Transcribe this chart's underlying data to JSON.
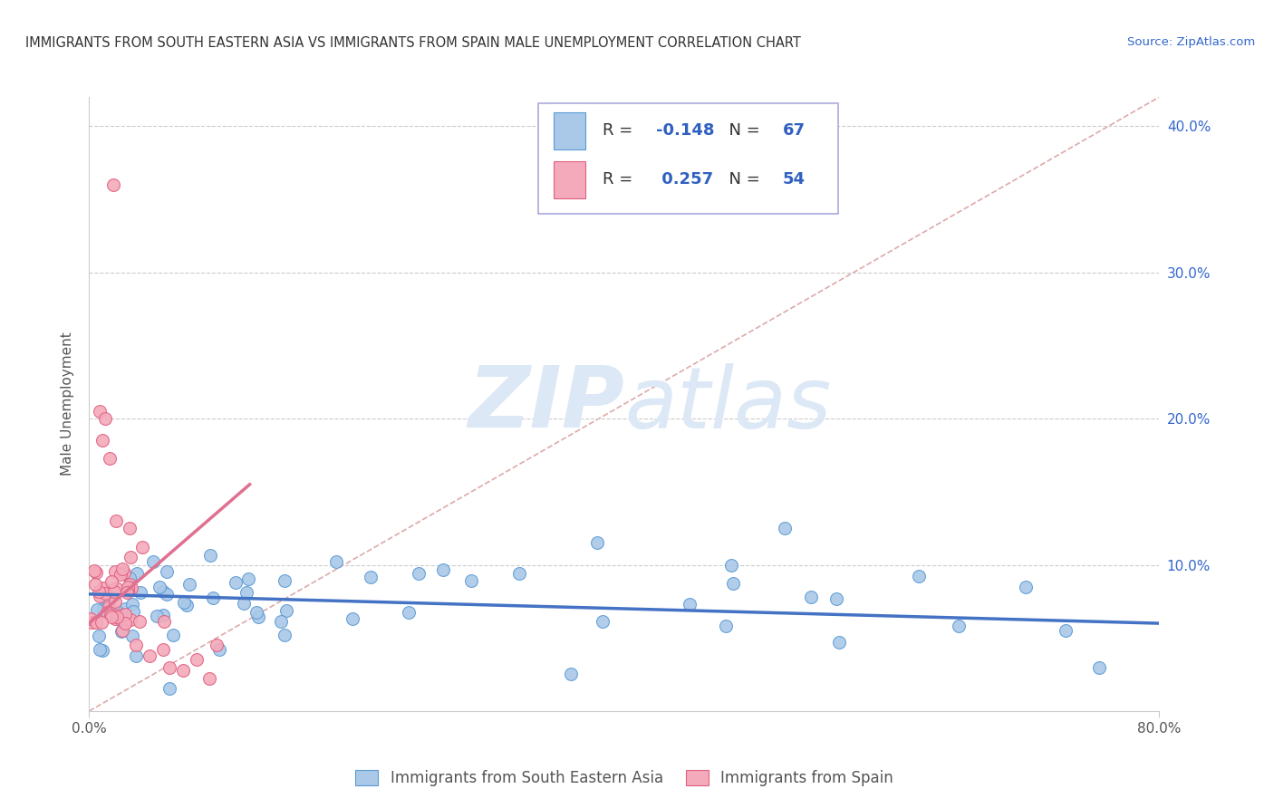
{
  "title": "IMMIGRANTS FROM SOUTH EASTERN ASIA VS IMMIGRANTS FROM SPAIN MALE UNEMPLOYMENT CORRELATION CHART",
  "source": "Source: ZipAtlas.com",
  "ylabel": "Male Unemployment",
  "xlim": [
    0.0,
    0.8
  ],
  "ylim": [
    0.0,
    0.42
  ],
  "yticks": [
    0.1,
    0.2,
    0.3,
    0.4
  ],
  "ytick_labels": [
    "10.0%",
    "20.0%",
    "30.0%",
    "40.0%"
  ],
  "r_blue": -0.148,
  "n_blue": 67,
  "r_pink": 0.257,
  "n_pink": 54,
  "series1_label": "Immigrants from South Eastern Asia",
  "series2_label": "Immigrants from Spain",
  "dot_color_blue": "#aac8e8",
  "dot_edge_blue": "#5b9bd5",
  "dot_color_pink": "#f4aabb",
  "dot_edge_pink": "#e06080",
  "line_color_blue": "#4472c4",
  "line_color_pink": "#e07090",
  "diag_color": "#ddaaaa",
  "watermark_zip_color": "#dce8f5",
  "watermark_atlas_color": "#dce8f5",
  "background_color": "#ffffff",
  "grid_color": "#cccccc",
  "title_color": "#333333",
  "axis_label_color": "#555555",
  "tick_color": "#3366cc",
  "legend_border_color": "#aaaadd",
  "legend_r_color": "#3060c0",
  "seed": 42
}
